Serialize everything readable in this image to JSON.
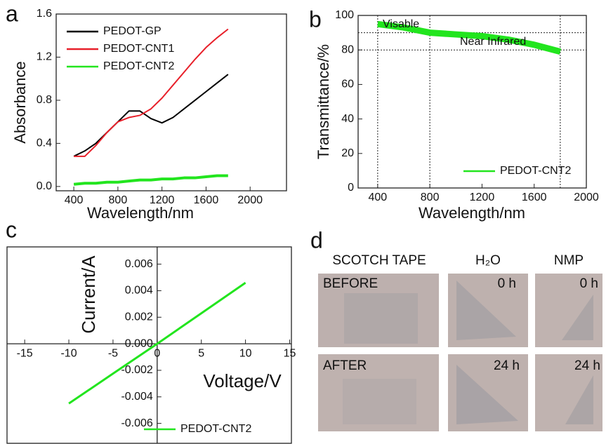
{
  "chart_data": [
    {
      "type": "line",
      "label": "a",
      "xlabel": "Wavelength/nm",
      "ylabel": "Absorbance",
      "x": [
        400,
        500,
        600,
        700,
        800,
        900,
        1000,
        1100,
        1200,
        1300,
        1400,
        1500,
        1600,
        1700,
        1800
      ],
      "series": [
        {
          "name": "PEDOT-GP",
          "color": "#000000",
          "values": [
            0.28,
            0.33,
            0.4,
            0.5,
            0.6,
            0.7,
            0.7,
            0.63,
            0.59,
            0.64,
            0.72,
            0.8,
            0.88,
            0.96,
            1.04
          ]
        },
        {
          "name": "PEDOT-CNT1",
          "color": "#e8202a",
          "values": [
            0.28,
            0.28,
            0.38,
            0.5,
            0.6,
            0.64,
            0.66,
            0.72,
            0.82,
            0.94,
            1.06,
            1.18,
            1.29,
            1.38,
            1.46
          ]
        },
        {
          "name": "PEDOT-CNT2",
          "color": "#22e51e",
          "values": [
            0.02,
            0.03,
            0.03,
            0.04,
            0.04,
            0.05,
            0.06,
            0.06,
            0.07,
            0.07,
            0.08,
            0.08,
            0.09,
            0.1,
            0.1
          ]
        }
      ],
      "xlim": [
        240,
        2330
      ],
      "xticks": [
        400,
        800,
        1200,
        1600,
        2000
      ],
      "ylim": [
        -0.04,
        1.6
      ],
      "yticks": [
        {
          "value": 0,
          "label": "0.0"
        },
        0.4,
        0.8,
        1.2,
        1.6
      ],
      "legend": "upper left"
    },
    {
      "type": "line",
      "label": "b",
      "xlabel": "Wavelength/nm",
      "ylabel": "Transmittance/%",
      "x": [
        400,
        600,
        800,
        1000,
        1200,
        1400,
        1600,
        1800
      ],
      "series": [
        {
          "name": "PEDOT-CNT2",
          "color": "#22e51e",
          "values": [
            95,
            93,
            90,
            89,
            88,
            86,
            83,
            79
          ]
        }
      ],
      "xlim": [
        250,
        2000
      ],
      "xticks": [
        400,
        800,
        1200,
        1600,
        2000
      ],
      "ylim": [
        0,
        100
      ],
      "yticks": [
        0,
        20,
        40,
        60,
        80,
        100
      ],
      "hlines": [
        90,
        80
      ],
      "vlines": [
        400,
        800,
        1800
      ],
      "annotations": [
        "Visable",
        "Near Infrared"
      ],
      "legend": "lower right"
    },
    {
      "type": "line",
      "label": "c",
      "xlabel": "Voltage/V",
      "ylabel": "Current/A",
      "x": [
        -10,
        -5,
        0,
        5,
        10
      ],
      "series": [
        {
          "name": "PEDOT-CNT2",
          "color": "#22e51e",
          "values": [
            -0.0045,
            -0.00225,
            0,
            0.0023,
            0.0046
          ]
        }
      ],
      "xlim": [
        -17,
        15.2
      ],
      "xticks": [
        -15,
        -10,
        -5,
        0,
        5,
        10,
        15
      ],
      "ylim": [
        -0.0075,
        0.0073
      ],
      "yticks": [
        {
          "value": -0.006,
          "label": "-0.006"
        },
        {
          "value": -0.004,
          "label": "-0.004"
        },
        {
          "value": -0.002,
          "label": "-0.002"
        },
        {
          "value": 0,
          "label": "0.000"
        },
        {
          "value": 0.002,
          "label": "0.002"
        },
        {
          "value": 0.004,
          "label": "0.004"
        },
        {
          "value": 0.006,
          "label": "0.006"
        }
      ],
      "crossing_axes": true,
      "legend": "lower right"
    }
  ],
  "photos": {
    "label": "d",
    "columns": [
      "SCOTCH TAPE",
      "H₂O",
      "NMP"
    ],
    "rows": [
      {
        "label": "BEFORE",
        "times": [
          "0 h",
          "0 h"
        ]
      },
      {
        "label": "AFTER",
        "times": [
          "24 h",
          "24 h"
        ]
      }
    ]
  }
}
